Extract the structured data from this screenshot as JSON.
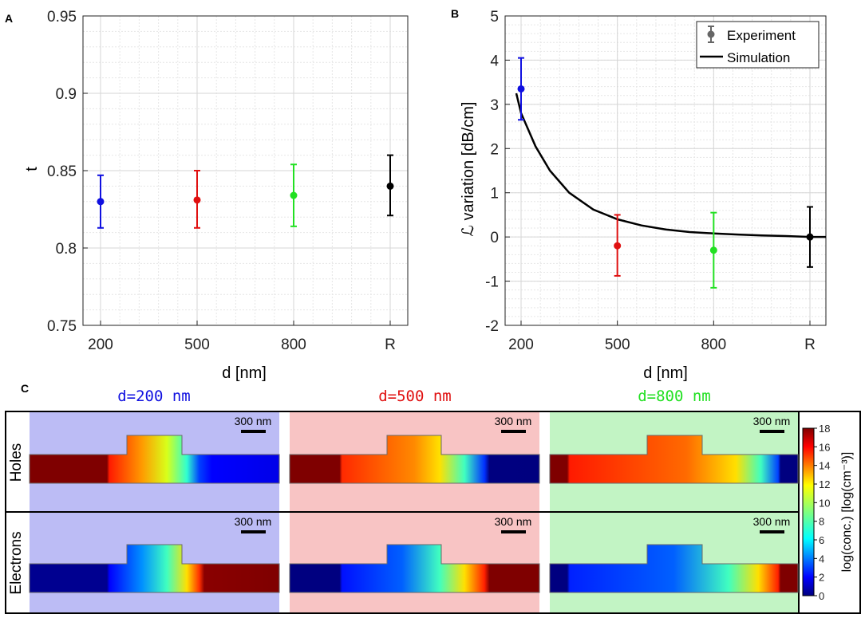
{
  "panel_labels": {
    "a": "A",
    "b": "B",
    "c": "C"
  },
  "colors": {
    "blue": "#1010e0",
    "red": "#e01010",
    "green": "#22e022",
    "black": "#000000",
    "bg_blue": "#bcbcf5",
    "bg_red": "#f8c4c4",
    "bg_green": "#c2f4c4"
  },
  "chart_data": [
    {
      "id": "A",
      "type": "scatter",
      "title": "",
      "xlabel": "d [nm]",
      "ylabel": "t",
      "categories": [
        "200",
        "500",
        "800",
        "R"
      ],
      "ylim": [
        0.75,
        0.95
      ],
      "yticks": [
        "0.75",
        "0.8",
        "0.85",
        "0.9",
        "0.95"
      ],
      "grid": true,
      "series": [
        {
          "name": "d=200",
          "color": "#1010e0",
          "values": [
            0.83
          ],
          "err_low": [
            0.813
          ],
          "err_high": [
            0.847
          ]
        },
        {
          "name": "d=500",
          "color": "#e01010",
          "values": [
            0.831
          ],
          "err_low": [
            0.813
          ],
          "err_high": [
            0.85
          ]
        },
        {
          "name": "d=800",
          "color": "#22e022",
          "values": [
            0.834
          ],
          "err_low": [
            0.814
          ],
          "err_high": [
            0.854
          ]
        },
        {
          "name": "R",
          "color": "#000000",
          "values": [
            0.84
          ],
          "err_low": [
            0.821
          ],
          "err_high": [
            0.86
          ]
        }
      ]
    },
    {
      "id": "B",
      "type": "line",
      "title": "",
      "xlabel": "d [nm]",
      "ylabel": "ℒ variation [dB/cm]",
      "categories": [
        "200",
        "500",
        "800",
        "R"
      ],
      "ylim": [
        -2,
        5
      ],
      "yticks": [
        "-2",
        "-1",
        "0",
        "1",
        "2",
        "3",
        "4",
        "5"
      ],
      "grid": true,
      "legend": {
        "position": "top-right",
        "entries": [
          "Experiment",
          "Simulation"
        ]
      },
      "experiment": [
        {
          "x": "200",
          "value": 3.35,
          "err_low": 2.65,
          "err_high": 4.05,
          "color": "#1010e0"
        },
        {
          "x": "500",
          "value": -0.2,
          "err_low": -0.88,
          "err_high": 0.5,
          "color": "#e01010"
        },
        {
          "x": "800",
          "value": -0.3,
          "err_low": -1.15,
          "err_high": 0.55,
          "color": "#22e022"
        },
        {
          "x": "R",
          "value": 0.0,
          "err_low": -0.68,
          "err_high": 0.68,
          "color": "#000000"
        }
      ],
      "simulation": {
        "x": [
          -0.05,
          0.0,
          0.15,
          0.3,
          0.5,
          0.75,
          1.0,
          1.25,
          1.5,
          1.75,
          2.0,
          2.25,
          2.5,
          2.75,
          3.0,
          3.17
        ],
        "y": [
          3.25,
          2.8,
          2.05,
          1.5,
          1.0,
          0.62,
          0.4,
          0.26,
          0.17,
          0.11,
          0.08,
          0.055,
          0.035,
          0.02,
          0.0,
          0.0
        ]
      }
    }
  ],
  "panel_c": {
    "columns": [
      {
        "title": "d=200 nm",
        "color": "#1010e0",
        "bg": "#bcbcf5"
      },
      {
        "title": "d=500 nm",
        "color": "#e01010",
        "bg": "#f8c4c4"
      },
      {
        "title": "d=800 nm",
        "color": "#22e022",
        "bg": "#c2f4c4"
      }
    ],
    "rows": [
      "Holes",
      "Electrons"
    ],
    "scalebar": "300 nm",
    "colorbar": {
      "label": "log(conc.) [log(cm⁻³)]",
      "ticks": [
        "0",
        "2",
        "4",
        "6",
        "8",
        "10",
        "12",
        "14",
        "16",
        "18"
      ],
      "range": [
        0,
        18
      ]
    }
  }
}
